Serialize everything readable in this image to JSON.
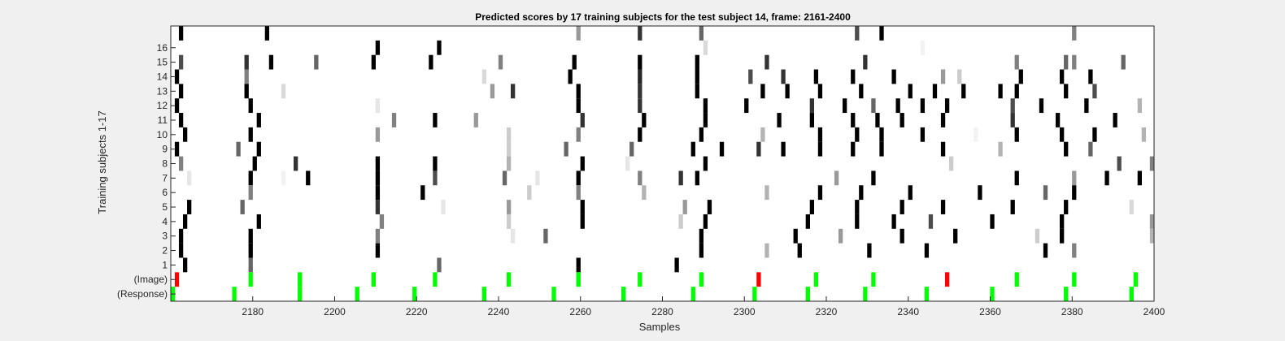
{
  "chart_data": {
    "type": "heatmap",
    "title": "Predicted scores by 17 training subjects for the test subject 14, frame: 2161-2400",
    "xlabel": "Samples",
    "ylabel": "Training subjects 1-17",
    "xlim": [
      2161,
      2400
    ],
    "xticks": [
      2180,
      2200,
      2220,
      2240,
      2260,
      2280,
      2300,
      2320,
      2340,
      2360,
      2380,
      2400
    ],
    "rows": [
      "17",
      "16",
      "15",
      "14",
      "13",
      "12",
      "11",
      "10",
      "9",
      "8",
      "7",
      "6",
      "5",
      "4",
      "3",
      "2",
      "1",
      "(Image)",
      "(Response)"
    ],
    "row_tick_labels": [
      "16",
      "15",
      "14",
      "13",
      "12",
      "11",
      "10",
      "9",
      "8",
      "7",
      "6",
      "5",
      "4",
      "3",
      "2",
      "1",
      "(Image)",
      "(Response)"
    ],
    "grid": false,
    "colors": {
      "score_max": "#000000",
      "score_min": "#ffffff",
      "image_correct": "#00ff00",
      "image_incorrect": "#ff0000",
      "response": "#00ff00",
      "background": "#f0f0f0"
    },
    "score_rows": [
      {
        "subject": 17,
        "cells": [
          [
            2163,
            1
          ],
          [
            2184,
            1
          ],
          [
            2260,
            0.4
          ],
          [
            2275,
            0.8
          ],
          [
            2290,
            0.6
          ],
          [
            2328,
            0.7
          ],
          [
            2334,
            1
          ],
          [
            2381,
            0.5
          ]
        ]
      },
      {
        "subject": 16,
        "cells": [
          [
            2211,
            1
          ],
          [
            2226,
            1
          ],
          [
            2291,
            0.15
          ],
          [
            2344,
            0.05
          ]
        ]
      },
      {
        "subject": 15,
        "cells": [
          [
            2163,
            0.7
          ],
          [
            2179,
            0.8
          ],
          [
            2185,
            1
          ],
          [
            2196,
            0.6
          ],
          [
            2210,
            1
          ],
          [
            2224,
            1
          ],
          [
            2241,
            0.5
          ],
          [
            2259,
            1
          ],
          [
            2275,
            1
          ],
          [
            2289,
            1
          ],
          [
            2306,
            0.8
          ],
          [
            2330,
            0.8
          ],
          [
            2367,
            0.5
          ],
          [
            2379,
            0.6
          ],
          [
            2381,
            0.5
          ],
          [
            2393,
            0.6
          ]
        ]
      },
      {
        "subject": 14,
        "cells": [
          [
            2162,
            1
          ],
          [
            2179,
            0.5
          ],
          [
            2237,
            0.15
          ],
          [
            2258,
            1
          ],
          [
            2275,
            0.85
          ],
          [
            2289,
            1
          ],
          [
            2302,
            0.7
          ],
          [
            2310,
            0.8
          ],
          [
            2318,
            1
          ],
          [
            2327,
            1
          ],
          [
            2337,
            1
          ],
          [
            2349,
            0.4
          ],
          [
            2353,
            0.2
          ],
          [
            2368,
            1
          ],
          [
            2378,
            1
          ],
          [
            2385,
            1
          ]
        ]
      },
      {
        "subject": 13,
        "cells": [
          [
            2163,
            1
          ],
          [
            2179,
            1
          ],
          [
            2188,
            0.15
          ],
          [
            2239,
            0.4
          ],
          [
            2244,
            0.8
          ],
          [
            2260,
            1
          ],
          [
            2275,
            0.8
          ],
          [
            2289,
            1
          ],
          [
            2305,
            1
          ],
          [
            2311,
            1
          ],
          [
            2319,
            1
          ],
          [
            2329,
            1
          ],
          [
            2341,
            1
          ],
          [
            2347,
            1
          ],
          [
            2354,
            1
          ],
          [
            2363,
            1
          ],
          [
            2367,
            1
          ],
          [
            2379,
            1
          ],
          [
            2386,
            0.7
          ]
        ]
      },
      {
        "subject": 12,
        "cells": [
          [
            2162,
            1
          ],
          [
            2180,
            1
          ],
          [
            2211,
            0.1
          ],
          [
            2260,
            1
          ],
          [
            2275,
            0.8
          ],
          [
            2291,
            1
          ],
          [
            2301,
            1
          ],
          [
            2317,
            0.8
          ],
          [
            2325,
            1
          ],
          [
            2332,
            0.6
          ],
          [
            2338,
            1
          ],
          [
            2344,
            1
          ],
          [
            2350,
            1
          ],
          [
            2366,
            0.7
          ],
          [
            2373,
            1
          ],
          [
            2384,
            1
          ],
          [
            2397,
            0.3
          ]
        ]
      },
      {
        "subject": 11,
        "cells": [
          [
            2163,
            1
          ],
          [
            2182,
            1
          ],
          [
            2215,
            0.5
          ],
          [
            2225,
            1
          ],
          [
            2235,
            0.4
          ],
          [
            2261,
            0.8
          ],
          [
            2276,
            1
          ],
          [
            2291,
            1
          ],
          [
            2309,
            1
          ],
          [
            2317,
            1
          ],
          [
            2327,
            1
          ],
          [
            2333,
            1
          ],
          [
            2339,
            1
          ],
          [
            2349,
            1
          ],
          [
            2366,
            0.8
          ],
          [
            2377,
            1
          ],
          [
            2391,
            1
          ]
        ]
      },
      {
        "subject": 10,
        "cells": [
          [
            2164,
            1
          ],
          [
            2180,
            1
          ],
          [
            2211,
            0.4
          ],
          [
            2243,
            0.2
          ],
          [
            2260,
            0.5
          ],
          [
            2275,
            1
          ],
          [
            2290,
            1
          ],
          [
            2305,
            0.3
          ],
          [
            2319,
            1
          ],
          [
            2328,
            1
          ],
          [
            2334,
            1
          ],
          [
            2344,
            1
          ],
          [
            2357,
            0.05
          ],
          [
            2367,
            1
          ],
          [
            2378,
            1
          ],
          [
            2386,
            1
          ],
          [
            2398,
            0.3
          ]
        ]
      },
      {
        "subject": 9,
        "cells": [
          [
            2162,
            1
          ],
          [
            2177,
            0.6
          ],
          [
            2182,
            1
          ],
          [
            2243,
            0.2
          ],
          [
            2257,
            0.6
          ],
          [
            2273,
            0.6
          ],
          [
            2288,
            1
          ],
          [
            2295,
            1
          ],
          [
            2304,
            0.8
          ],
          [
            2310,
            1
          ],
          [
            2319,
            1
          ],
          [
            2327,
            1
          ],
          [
            2334,
            1
          ],
          [
            2349,
            1
          ],
          [
            2363,
            0.3
          ],
          [
            2379,
            1
          ],
          [
            2385,
            0.6
          ]
        ]
      },
      {
        "subject": 8,
        "cells": [
          [
            2163,
            0.5
          ],
          [
            2181,
            1
          ],
          [
            2191,
            0.8
          ],
          [
            2211,
            1
          ],
          [
            2225,
            1
          ],
          [
            2243,
            0.3
          ],
          [
            2261,
            1
          ],
          [
            2272,
            0.1
          ],
          [
            2291,
            1
          ],
          [
            2351,
            0.2
          ],
          [
            2392,
            0.7
          ],
          [
            2400,
            0.5
          ]
        ]
      },
      {
        "subject": 7,
        "cells": [
          [
            2165,
            0.1
          ],
          [
            2180,
            1
          ],
          [
            2188,
            0.05
          ],
          [
            2194,
            1
          ],
          [
            2211,
            1
          ],
          [
            2225,
            0.7
          ],
          [
            2242,
            0.6
          ],
          [
            2250,
            0.1
          ],
          [
            2260,
            1
          ],
          [
            2275,
            0.5
          ],
          [
            2285,
            0.8
          ],
          [
            2289,
            1
          ],
          [
            2323,
            0.4
          ],
          [
            2332,
            1
          ],
          [
            2367,
            1
          ],
          [
            2381,
            0.4
          ],
          [
            2389,
            1
          ],
          [
            2397,
            1
          ]
        ]
      },
      {
        "subject": 6,
        "cells": [
          [
            2180,
            0.5
          ],
          [
            2211,
            1
          ],
          [
            2222,
            1
          ],
          [
            2248,
            0.2
          ],
          [
            2260,
            0.5
          ],
          [
            2276,
            0.3
          ],
          [
            2306,
            0.3
          ],
          [
            2319,
            1
          ],
          [
            2329,
            1
          ],
          [
            2341,
            1
          ],
          [
            2358,
            1
          ],
          [
            2374,
            0.6
          ],
          [
            2381,
            1
          ]
        ]
      },
      {
        "subject": 5,
        "cells": [
          [
            2165,
            1
          ],
          [
            2178,
            0.6
          ],
          [
            2211,
            0.8
          ],
          [
            2227,
            0.1
          ],
          [
            2243,
            0.4
          ],
          [
            2261,
            1
          ],
          [
            2286,
            0.4
          ],
          [
            2292,
            1
          ],
          [
            2317,
            1
          ],
          [
            2328,
            1
          ],
          [
            2339,
            1
          ],
          [
            2349,
            1
          ],
          [
            2366,
            1
          ],
          [
            2379,
            1
          ],
          [
            2395,
            0.15
          ]
        ]
      },
      {
        "subject": 4,
        "cells": [
          [
            2164,
            1
          ],
          [
            2182,
            1
          ],
          [
            2212,
            0.5
          ],
          [
            2243,
            0.2
          ],
          [
            2261,
            1
          ],
          [
            2285,
            0.2
          ],
          [
            2291,
            1
          ],
          [
            2316,
            1
          ],
          [
            2328,
            1
          ],
          [
            2337,
            1
          ],
          [
            2346,
            0.7
          ],
          [
            2361,
            1
          ],
          [
            2378,
            1
          ],
          [
            2400,
            0.4
          ]
        ]
      },
      {
        "subject": 3,
        "cells": [
          [
            2163,
            1
          ],
          [
            2180,
            1
          ],
          [
            2211,
            0.5
          ],
          [
            2244,
            0.1
          ],
          [
            2252,
            0.6
          ],
          [
            2290,
            1
          ],
          [
            2313,
            1
          ],
          [
            2324,
            0.4
          ],
          [
            2339,
            1
          ],
          [
            2352,
            1
          ],
          [
            2372,
            0.2
          ],
          [
            2378,
            1
          ],
          [
            2400,
            0.3
          ]
        ]
      },
      {
        "subject": 2,
        "cells": [
          [
            2163,
            1
          ],
          [
            2180,
            1
          ],
          [
            2211,
            1
          ],
          [
            2290,
            1
          ],
          [
            2306,
            0.3
          ],
          [
            2314,
            1
          ],
          [
            2331,
            1
          ],
          [
            2345,
            1
          ],
          [
            2374,
            1
          ],
          [
            2381,
            0.5
          ]
        ]
      },
      {
        "subject": 1,
        "cells": [
          [
            2164,
            1
          ],
          [
            2180,
            0.6
          ],
          [
            2226,
            0.6
          ],
          [
            2260,
            1
          ],
          [
            2284,
            1
          ]
        ]
      }
    ],
    "image_row": [
      {
        "x": 2162,
        "correct": false
      },
      {
        "x": 2180,
        "correct": true
      },
      {
        "x": 2192,
        "correct": true
      },
      {
        "x": 2210,
        "correct": true
      },
      {
        "x": 2225,
        "correct": true
      },
      {
        "x": 2243,
        "correct": true
      },
      {
        "x": 2260,
        "correct": true
      },
      {
        "x": 2275,
        "correct": true
      },
      {
        "x": 2290,
        "correct": true
      },
      {
        "x": 2304,
        "correct": false
      },
      {
        "x": 2318,
        "correct": true
      },
      {
        "x": 2332,
        "correct": true
      },
      {
        "x": 2350,
        "correct": false
      },
      {
        "x": 2367,
        "correct": true
      },
      {
        "x": 2381,
        "correct": true
      },
      {
        "x": 2396,
        "correct": true
      }
    ],
    "response_row": [
      2161,
      2176,
      2192,
      2206,
      2220,
      2237,
      2254,
      2271,
      2288,
      2303,
      2316,
      2330,
      2345,
      2361,
      2379,
      2395
    ]
  }
}
